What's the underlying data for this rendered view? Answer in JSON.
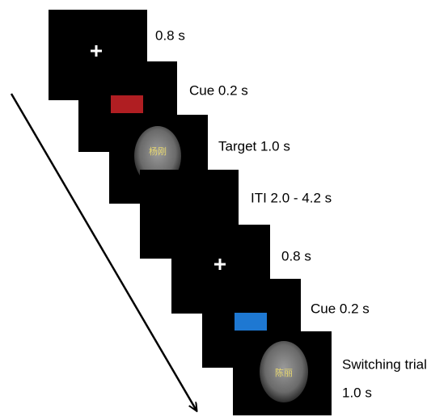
{
  "steps": [
    {
      "label": "0.8 s"
    },
    {
      "label": "Cue 0.2 s"
    },
    {
      "label": "Target 1.0 s",
      "face_name": "杨刚"
    },
    {
      "label": "ITI 2.0 - 4.2 s"
    },
    {
      "label": "0.8 s"
    },
    {
      "label": "Cue 0.2 s"
    },
    {
      "label_lines": [
        "Switching trial",
        "1.0 s"
      ],
      "face_name": "陈丽"
    }
  ]
}
